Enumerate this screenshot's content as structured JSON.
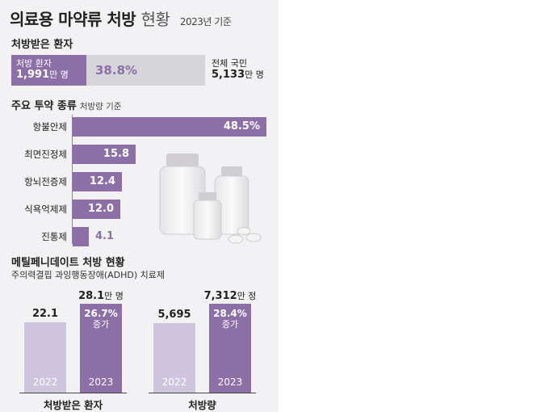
{
  "header": {
    "title_main": "의료용 마약류 처방",
    "title_light": "현황",
    "subtitle": "2023년 기준"
  },
  "patients": {
    "section_title": "처방받은 환자",
    "prescribed_label": "처방 환자",
    "prescribed_value": "1,991",
    "prescribed_unit": "만 명",
    "share_text": "38.8%",
    "total_label": "전체 국민",
    "total_value": "5,133",
    "total_unit": "만 명"
  },
  "drug_types": {
    "section_title": "주요 투약 종류",
    "section_note": "처방량 기준"
  },
  "adhd": {
    "section_title": "메틸페니데이트 처방 현황",
    "subtitle": "주의력결핍 과잉행동장애(ADHD) 치료제"
  },
  "colors": {
    "accent": "#8d6fa7",
    "light_bar": "#cfc4dd",
    "track": "#d6d5d9",
    "background": "#f2f1f3"
  },
  "chart_data": [
    {
      "type": "bar",
      "orientation": "horizontal",
      "title": "주요 투약 종류",
      "categories": [
        "항불안제",
        "최면진정제",
        "항뇌전증제",
        "식욕억제제",
        "진통제"
      ],
      "values": [
        48.5,
        15.8,
        12.4,
        12.0,
        4.1
      ],
      "value_labels": [
        "48.5%",
        "15.8",
        "12.4",
        "12.0",
        "4.1"
      ]
    },
    {
      "type": "bar",
      "title": "처방받은 환자",
      "categories": [
        "2022",
        "2023"
      ],
      "values": [
        22.1,
        28.1
      ],
      "value_labels": [
        "22.1",
        "28.1"
      ],
      "unit_label": "만 명",
      "increase_text": "26.7%",
      "increase_label": "증가"
    },
    {
      "type": "bar",
      "title": "처방량",
      "categories": [
        "2022",
        "2023"
      ],
      "values": [
        5695,
        7312
      ],
      "value_labels": [
        "5,695",
        "7,312"
      ],
      "unit_label": "만 정",
      "increase_text": "28.4%",
      "increase_label": "증가"
    }
  ],
  "share_ratio": 0.388
}
